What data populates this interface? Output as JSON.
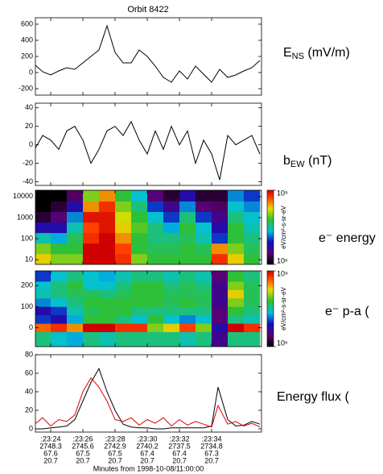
{
  "chart_data": [
    {
      "type": "line",
      "title": "Orbit 8422",
      "side_label": {
        "main": "E",
        "sub": "NS",
        "rest": " (mV/m)"
      },
      "ylim": [
        -280,
        680
      ],
      "yticks": [
        -200,
        0,
        200,
        400,
        600
      ],
      "xlim": [
        23.05,
        37.1
      ],
      "series": [
        {
          "color": "#000000",
          "x": [
            23,
            23.5,
            24,
            24.5,
            25,
            25.5,
            26,
            26.5,
            27,
            27.5,
            28,
            28.5,
            29,
            29.5,
            30,
            30.5,
            31,
            31.5,
            32,
            32.5,
            33,
            33.5,
            34,
            34.5,
            35,
            35.5,
            36,
            36.5,
            37
          ],
          "values": [
            100,
            10,
            -30,
            20,
            60,
            40,
            120,
            200,
            280,
            580,
            250,
            120,
            120,
            280,
            200,
            80,
            -60,
            -120,
            20,
            -80,
            80,
            -20,
            -120,
            40,
            -60,
            -30,
            20,
            60,
            150
          ]
        }
      ]
    },
    {
      "type": "line",
      "side_label": {
        "main": "b",
        "sub": "EW",
        "rest": " (nT)"
      },
      "ylim": [
        -44,
        45
      ],
      "yticks": [
        -40,
        -20,
        0,
        20,
        40
      ],
      "xlim": [
        23.05,
        37.1
      ],
      "series": [
        {
          "color": "#000000",
          "x": [
            23,
            23.5,
            24,
            24.5,
            25,
            25.5,
            26,
            26.5,
            27,
            27.5,
            28,
            28.5,
            29,
            29.5,
            30,
            30.5,
            31,
            31.5,
            32,
            32.5,
            33,
            33.5,
            34,
            34.5,
            35,
            35.5,
            36,
            36.5,
            37
          ],
          "values": [
            -5,
            10,
            5,
            -5,
            15,
            20,
            5,
            -20,
            -5,
            15,
            20,
            10,
            25,
            5,
            -10,
            15,
            -5,
            20,
            0,
            15,
            -20,
            5,
            -10,
            -38,
            10,
            0,
            5,
            10,
            -10
          ]
        }
      ]
    },
    {
      "type": "heatmap",
      "side_label": {
        "main": "e⁻ energy"
      },
      "log_y": true,
      "ylim": [
        6,
        20000
      ],
      "yticks": [
        10,
        100,
        1000,
        10000
      ],
      "xlim": [
        23.05,
        37.1
      ],
      "xbins": [
        23,
        24,
        25,
        26,
        27,
        28,
        29,
        30,
        31,
        32,
        33,
        34,
        35,
        36,
        37
      ],
      "ybins": [
        6,
        19,
        60,
        190,
        600,
        1900,
        6000,
        20000
      ],
      "zlim": [
        1000000.0,
        1000000000.0
      ],
      "colorbar_ticks": [
        {
          "value": 1000000.0,
          "label": "10⁶"
        },
        {
          "value": 1000000000.0,
          "label": "10⁹"
        }
      ],
      "colorbar_label": "eV/cm²-s-sr-eV",
      "z": [
        [
          200000000.0,
          100000000.0,
          100000000.0,
          1000000000.0,
          1000000000.0,
          600000000.0,
          100000000.0,
          60000000.0,
          60000000.0,
          60000000.0,
          60000000.0,
          600000000.0,
          200000000.0,
          60000000.0
        ],
        [
          100000000.0,
          60000000.0,
          60000000.0,
          1000000000.0,
          1000000000.0,
          500000000.0,
          60000000.0,
          50000000.0,
          50000000.0,
          60000000.0,
          50000000.0,
          300000000.0,
          100000000.0,
          50000000.0
        ],
        [
          30000000.0,
          20000000.0,
          50000000.0,
          600000000.0,
          1000000000.0,
          300000000.0,
          60000000.0,
          40000000.0,
          40000000.0,
          50000000.0,
          30000000.0,
          10000000.0,
          60000000.0,
          40000000.0
        ],
        [
          6000000.0,
          6000000.0,
          30000000.0,
          500000000.0,
          800000000.0,
          200000000.0,
          80000000.0,
          40000000.0,
          20000000.0,
          60000000.0,
          25000000.0,
          6000000.0,
          60000000.0,
          30000000.0
        ],
        [
          1600000.0,
          3000000.0,
          16000000.0,
          800000000.0,
          800000000.0,
          160000000.0,
          60000000.0,
          25000000.0,
          10000000.0,
          40000000.0,
          10000000.0,
          4000000.0,
          40000000.0,
          25000000.0
        ],
        [
          1000000.0,
          1600000.0,
          6000000.0,
          300000000.0,
          600000000.0,
          100000000.0,
          40000000.0,
          10000000.0,
          4000000.0,
          16000000.0,
          3000000.0,
          2500000.0,
          25000000.0,
          16000000.0
        ],
        [
          1000000.0,
          1000000.0,
          2500000.0,
          100000000.0,
          300000000.0,
          60000000.0,
          25000000.0,
          3000000.0,
          1600000.0,
          6000000.0,
          1600000.0,
          1600000.0,
          16000000.0,
          10000000.0
        ]
      ]
    },
    {
      "type": "heatmap",
      "side_label": {
        "main": "e⁻ p-a ("
      },
      "ylim": [
        -90,
        270
      ],
      "yticks": [
        0,
        100,
        200
      ],
      "xlim": [
        23.05,
        37.1
      ],
      "xbins": [
        23,
        24,
        25,
        26,
        27,
        28,
        29,
        30,
        31,
        32,
        33,
        34,
        35,
        36,
        37
      ],
      "ybins": [
        -90,
        -20,
        20,
        60,
        100,
        140,
        180,
        220,
        270
      ],
      "zlim": [
        1000000.0,
        1000000000.0
      ],
      "colorbar_ticks": [
        {
          "value": 1000000.0,
          "label": "10⁶"
        },
        {
          "value": 1000000000.0,
          "label": "10⁹"
        }
      ],
      "colorbar_label": "eV/cm²-s-sr-eV",
      "z": [
        [
          40000000.0,
          25000000.0,
          20000000.0,
          40000000.0,
          30000000.0,
          40000000.0,
          40000000.0,
          40000000.0,
          40000000.0,
          30000000.0,
          40000000.0,
          4000000.0,
          40000000.0,
          40000000.0
        ],
        [
          400000000.0,
          600000000.0,
          300000000.0,
          1000000000.0,
          1000000000.0,
          600000000.0,
          600000000.0,
          100000000.0,
          200000000.0,
          500000000.0,
          100000000.0,
          6000000.0,
          1000000000.0,
          600000000.0
        ],
        [
          10000000.0,
          6000000.0,
          20000000.0,
          60000000.0,
          60000000.0,
          40000000.0,
          25000000.0,
          60000000.0,
          25000000.0,
          16000000.0,
          25000000.0,
          3000000.0,
          40000000.0,
          30000000.0
        ],
        [
          6000000.0,
          10000000.0,
          30000000.0,
          50000000.0,
          60000000.0,
          60000000.0,
          40000000.0,
          40000000.0,
          40000000.0,
          40000000.0,
          40000000.0,
          3000000.0,
          60000000.0,
          40000000.0
        ],
        [
          16000000.0,
          25000000.0,
          40000000.0,
          60000000.0,
          60000000.0,
          60000000.0,
          60000000.0,
          60000000.0,
          50000000.0,
          60000000.0,
          50000000.0,
          4000000.0,
          100000000.0,
          50000000.0
        ],
        [
          30000000.0,
          40000000.0,
          50000000.0,
          50000000.0,
          40000000.0,
          50000000.0,
          60000000.0,
          60000000.0,
          50000000.0,
          50000000.0,
          50000000.0,
          4000000.0,
          200000000.0,
          50000000.0
        ],
        [
          25000000.0,
          40000000.0,
          60000000.0,
          25000000.0,
          25000000.0,
          40000000.0,
          60000000.0,
          60000000.0,
          40000000.0,
          50000000.0,
          40000000.0,
          4000000.0,
          100000000.0,
          50000000.0
        ],
        [
          10000000.0,
          25000000.0,
          40000000.0,
          25000000.0,
          20000000.0,
          30000000.0,
          40000000.0,
          40000000.0,
          30000000.0,
          40000000.0,
          30000000.0,
          3000000.0,
          60000000.0,
          40000000.0
        ]
      ]
    },
    {
      "type": "line",
      "side_label": {
        "main": "Energy flux ("
      },
      "ylim": [
        -3.5,
        80
      ],
      "yticks": [
        0,
        20,
        40,
        60,
        80
      ],
      "xlim": [
        23.05,
        37.1
      ],
      "series": [
        {
          "color": "#000000",
          "x": [
            23,
            23.5,
            24,
            24.5,
            25,
            25.5,
            26,
            26.5,
            27,
            27.5,
            28,
            28.5,
            29,
            29.5,
            30,
            30.5,
            31,
            31.5,
            32,
            32.5,
            33,
            33.5,
            34,
            34.4,
            35,
            35.5,
            36,
            36.5,
            37
          ],
          "values": [
            0,
            0,
            1,
            2,
            3,
            10,
            30,
            50,
            65,
            40,
            20,
            5,
            2,
            1,
            1,
            0,
            0,
            1,
            1,
            1,
            1,
            1,
            3,
            45,
            10,
            3,
            4,
            8,
            5
          ]
        },
        {
          "color": "#dd0000",
          "x": [
            23,
            23.5,
            24,
            24.5,
            25,
            25.5,
            26,
            26.5,
            27,
            27.5,
            28,
            28.5,
            29,
            29.5,
            30,
            30.5,
            31,
            31.5,
            32,
            32.5,
            33,
            33.5,
            34,
            34.4,
            35,
            35.5,
            36,
            36.5,
            37
          ],
          "values": [
            5,
            12,
            3,
            10,
            8,
            15,
            40,
            55,
            45,
            30,
            10,
            8,
            12,
            4,
            10,
            6,
            12,
            3,
            10,
            4,
            8,
            5,
            2,
            25,
            5,
            8,
            3,
            6,
            2
          ]
        }
      ],
      "xticks": [
        {
          "value": 24,
          "label": ":23:24"
        },
        {
          "value": 26,
          "label": ":23:26"
        },
        {
          "value": 28,
          "label": ":23:28"
        },
        {
          "value": 30,
          "label": ":23:30"
        },
        {
          "value": 32,
          "label": ":23:32"
        },
        {
          "value": 34,
          "label": ":23:34"
        }
      ],
      "orbit_rows": [
        [
          2748.3,
          2745.6,
          2742.9,
          2740.2,
          2737.5,
          2734.8
        ],
        [
          67.6,
          67.5,
          67.5,
          67.4,
          67.4,
          67.3
        ],
        [
          20.7,
          20.7,
          20.7,
          20.7,
          20.7,
          20.7
        ]
      ],
      "xlabel": "Minutes from 1998-10-08/11:00:00"
    }
  ]
}
